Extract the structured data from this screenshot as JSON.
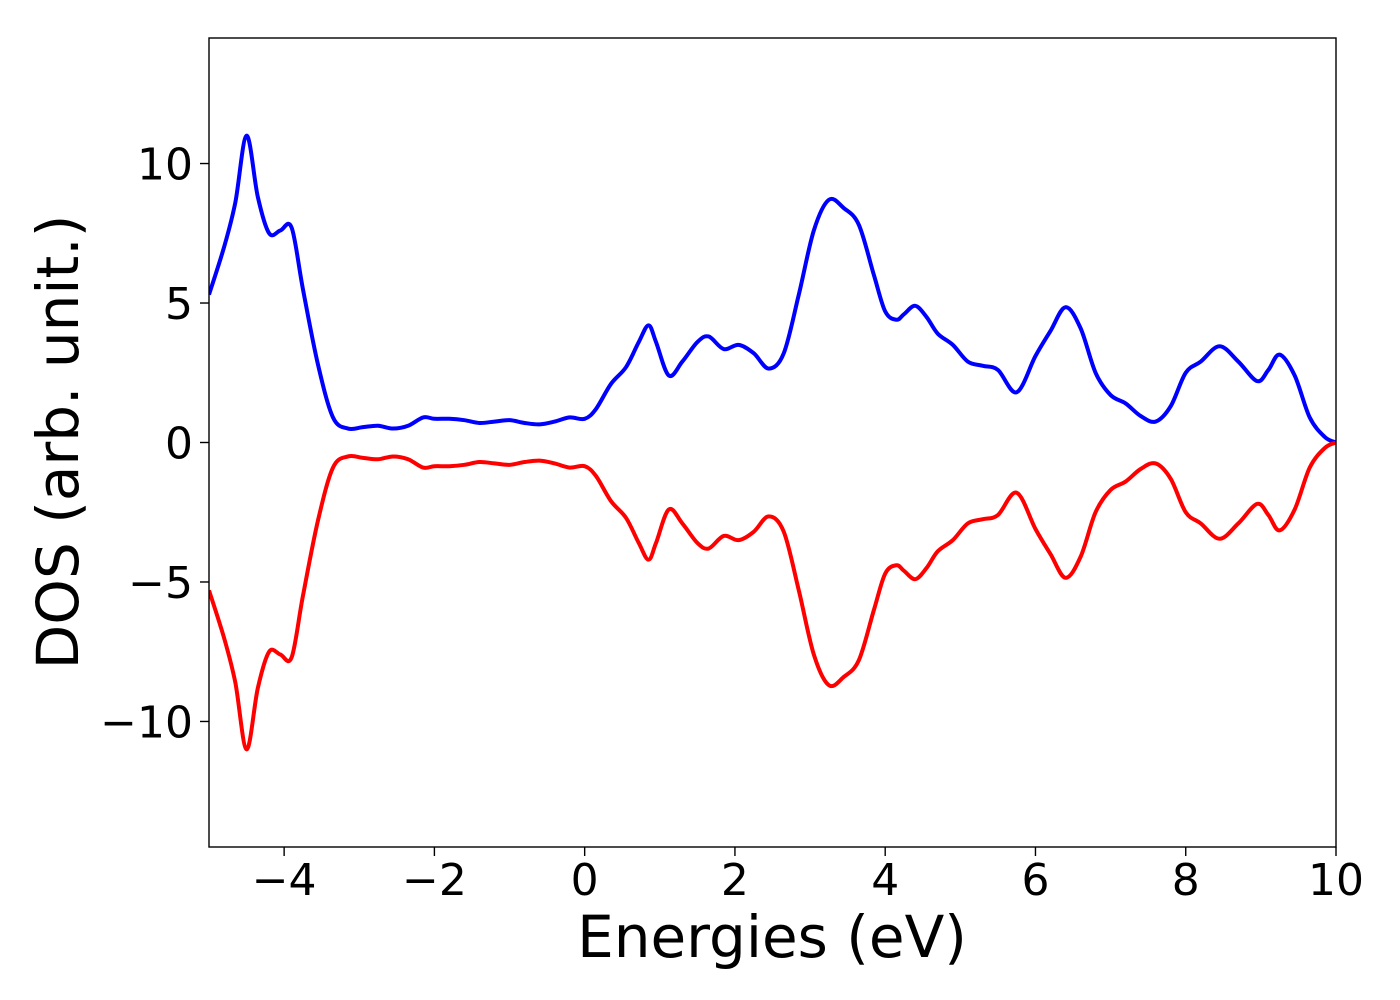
{
  "chart_data": {
    "type": "line",
    "title": "",
    "xlabel": "Energies (eV)",
    "ylabel": "DOS (arb. unit.)",
    "xlim": [
      -5,
      10
    ],
    "ylim": [
      -14.5,
      14.5
    ],
    "x_ticks": [
      -4,
      -2,
      0,
      2,
      4,
      6,
      8,
      10
    ],
    "y_ticks": [
      -10,
      -5,
      0,
      5,
      10
    ],
    "x_tick_labels": [
      "−4",
      "−2",
      "0",
      "2",
      "4",
      "6",
      "8",
      "10"
    ],
    "y_tick_labels": [
      "−10",
      "−5",
      "0",
      "5",
      "10"
    ],
    "grid": false,
    "legend": "none",
    "series": [
      {
        "color": "#0000ff",
        "points": [
          [
            -5.0,
            5.3
          ],
          [
            -4.8,
            7.0
          ],
          [
            -4.65,
            8.6
          ],
          [
            -4.5,
            11.0
          ],
          [
            -4.35,
            8.8
          ],
          [
            -4.2,
            7.5
          ],
          [
            -4.05,
            7.6
          ],
          [
            -3.9,
            7.7
          ],
          [
            -3.75,
            5.5
          ],
          [
            -3.55,
            2.8
          ],
          [
            -3.35,
            0.9
          ],
          [
            -3.15,
            0.5
          ],
          [
            -2.95,
            0.55
          ],
          [
            -2.75,
            0.6
          ],
          [
            -2.55,
            0.5
          ],
          [
            -2.35,
            0.6
          ],
          [
            -2.15,
            0.9
          ],
          [
            -2.0,
            0.85
          ],
          [
            -1.8,
            0.85
          ],
          [
            -1.6,
            0.8
          ],
          [
            -1.4,
            0.7
          ],
          [
            -1.2,
            0.75
          ],
          [
            -1.0,
            0.8
          ],
          [
            -0.8,
            0.7
          ],
          [
            -0.6,
            0.65
          ],
          [
            -0.4,
            0.75
          ],
          [
            -0.2,
            0.9
          ],
          [
            0.0,
            0.85
          ],
          [
            0.15,
            1.2
          ],
          [
            0.35,
            2.1
          ],
          [
            0.55,
            2.7
          ],
          [
            0.72,
            3.6
          ],
          [
            0.85,
            4.2
          ],
          [
            0.95,
            3.6
          ],
          [
            1.12,
            2.4
          ],
          [
            1.3,
            2.9
          ],
          [
            1.5,
            3.6
          ],
          [
            1.65,
            3.8
          ],
          [
            1.85,
            3.35
          ],
          [
            2.05,
            3.5
          ],
          [
            2.25,
            3.2
          ],
          [
            2.45,
            2.65
          ],
          [
            2.65,
            3.2
          ],
          [
            2.85,
            5.3
          ],
          [
            3.05,
            7.6
          ],
          [
            3.25,
            8.7
          ],
          [
            3.45,
            8.4
          ],
          [
            3.65,
            7.8
          ],
          [
            3.85,
            6.0
          ],
          [
            4.0,
            4.7
          ],
          [
            4.15,
            4.4
          ],
          [
            4.25,
            4.6
          ],
          [
            4.4,
            4.9
          ],
          [
            4.55,
            4.5
          ],
          [
            4.7,
            3.9
          ],
          [
            4.9,
            3.5
          ],
          [
            5.1,
            2.9
          ],
          [
            5.3,
            2.75
          ],
          [
            5.5,
            2.6
          ],
          [
            5.75,
            1.8
          ],
          [
            6.0,
            3.1
          ],
          [
            6.2,
            4.0
          ],
          [
            6.4,
            4.85
          ],
          [
            6.6,
            4.1
          ],
          [
            6.8,
            2.5
          ],
          [
            7.0,
            1.7
          ],
          [
            7.2,
            1.4
          ],
          [
            7.4,
            0.95
          ],
          [
            7.6,
            0.75
          ],
          [
            7.8,
            1.3
          ],
          [
            8.0,
            2.5
          ],
          [
            8.2,
            2.9
          ],
          [
            8.45,
            3.45
          ],
          [
            8.7,
            2.9
          ],
          [
            8.95,
            2.2
          ],
          [
            9.1,
            2.6
          ],
          [
            9.25,
            3.15
          ],
          [
            9.45,
            2.4
          ],
          [
            9.65,
            0.9
          ],
          [
            9.85,
            0.2
          ],
          [
            10.0,
            0.0
          ]
        ]
      },
      {
        "color": "#ff0000",
        "mirror_of_series": 0
      }
    ]
  }
}
